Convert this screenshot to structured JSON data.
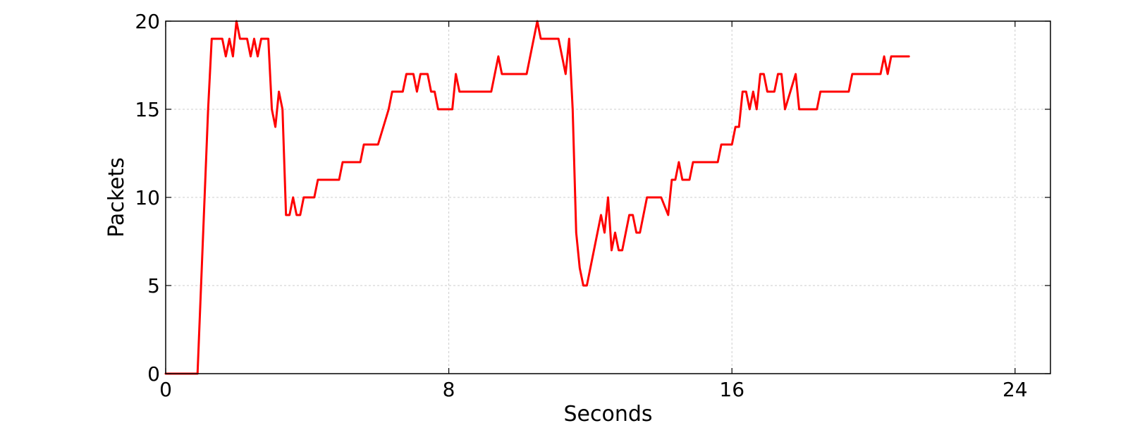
{
  "chart_data": {
    "type": "line",
    "title": "",
    "xlabel": "Seconds",
    "ylabel": "Packets",
    "xlim": [
      0,
      25
    ],
    "ylim": [
      0,
      20
    ],
    "xticks": [
      0,
      8,
      16,
      24
    ],
    "yticks": [
      0,
      5,
      10,
      15,
      20
    ],
    "grid": true,
    "legend": "none",
    "series_color": "#ff0000",
    "series": [
      {
        "values": [
          [
            0,
            0
          ],
          [
            0.9,
            0
          ],
          [
            1.1,
            10
          ],
          [
            1.2,
            15
          ],
          [
            1.3,
            19
          ],
          [
            1.6,
            19
          ],
          [
            1.7,
            18
          ],
          [
            1.8,
            19
          ],
          [
            1.9,
            18
          ],
          [
            2.0,
            20
          ],
          [
            2.1,
            19
          ],
          [
            2.3,
            19
          ],
          [
            2.4,
            18
          ],
          [
            2.5,
            19
          ],
          [
            2.6,
            18
          ],
          [
            2.7,
            19
          ],
          [
            2.9,
            19
          ],
          [
            3.0,
            15
          ],
          [
            3.1,
            14
          ],
          [
            3.2,
            16
          ],
          [
            3.3,
            15
          ],
          [
            3.4,
            9
          ],
          [
            3.5,
            9
          ],
          [
            3.6,
            10
          ],
          [
            3.7,
            9
          ],
          [
            3.8,
            9
          ],
          [
            3.9,
            10
          ],
          [
            4.2,
            10
          ],
          [
            4.3,
            11
          ],
          [
            4.9,
            11
          ],
          [
            5.0,
            12
          ],
          [
            5.5,
            12
          ],
          [
            5.6,
            13
          ],
          [
            6.0,
            13
          ],
          [
            6.3,
            15
          ],
          [
            6.4,
            16
          ],
          [
            6.7,
            16
          ],
          [
            6.8,
            17
          ],
          [
            7.0,
            17
          ],
          [
            7.1,
            16
          ],
          [
            7.2,
            17
          ],
          [
            7.4,
            17
          ],
          [
            7.5,
            16
          ],
          [
            7.6,
            16
          ],
          [
            7.7,
            15
          ],
          [
            8.1,
            15
          ],
          [
            8.2,
            17
          ],
          [
            8.3,
            16
          ],
          [
            9.2,
            16
          ],
          [
            9.4,
            18
          ],
          [
            9.5,
            17
          ],
          [
            10.2,
            17
          ],
          [
            10.5,
            20
          ],
          [
            10.6,
            19
          ],
          [
            11.1,
            19
          ],
          [
            11.3,
            17
          ],
          [
            11.4,
            19
          ],
          [
            11.5,
            15
          ],
          [
            11.6,
            8
          ],
          [
            11.7,
            6
          ],
          [
            11.8,
            5
          ],
          [
            11.9,
            5
          ],
          [
            12.3,
            9
          ],
          [
            12.4,
            8
          ],
          [
            12.5,
            10
          ],
          [
            12.6,
            7
          ],
          [
            12.7,
            8
          ],
          [
            12.8,
            7
          ],
          [
            12.9,
            7
          ],
          [
            13.1,
            9
          ],
          [
            13.2,
            9
          ],
          [
            13.3,
            8
          ],
          [
            13.4,
            8
          ],
          [
            13.6,
            10
          ],
          [
            14.0,
            10
          ],
          [
            14.2,
            9
          ],
          [
            14.3,
            11
          ],
          [
            14.4,
            11
          ],
          [
            14.5,
            12
          ],
          [
            14.6,
            11
          ],
          [
            14.8,
            11
          ],
          [
            14.9,
            12
          ],
          [
            15.6,
            12
          ],
          [
            15.7,
            13
          ],
          [
            16.0,
            13
          ],
          [
            16.1,
            14
          ],
          [
            16.2,
            14
          ],
          [
            16.3,
            16
          ],
          [
            16.4,
            16
          ],
          [
            16.5,
            15
          ],
          [
            16.6,
            16
          ],
          [
            16.7,
            15
          ],
          [
            16.8,
            17
          ],
          [
            16.9,
            17
          ],
          [
            17.0,
            16
          ],
          [
            17.2,
            16
          ],
          [
            17.3,
            17
          ],
          [
            17.4,
            17
          ],
          [
            17.5,
            15
          ],
          [
            17.8,
            17
          ],
          [
            17.9,
            15
          ],
          [
            18.4,
            15
          ],
          [
            18.5,
            16
          ],
          [
            19.3,
            16
          ],
          [
            19.4,
            17
          ],
          [
            20.2,
            17
          ],
          [
            20.3,
            18
          ],
          [
            20.4,
            17
          ],
          [
            20.5,
            18
          ],
          [
            21.0,
            18
          ]
        ]
      }
    ]
  }
}
